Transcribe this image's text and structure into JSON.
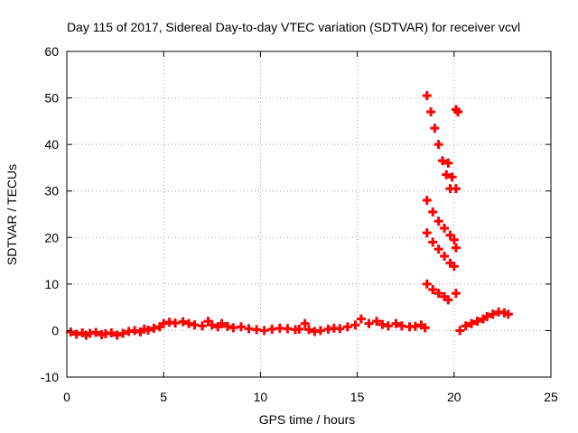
{
  "chart_data": {
    "type": "scatter",
    "title": "Day 115 of 2017, Sidereal Day-to-day VTEC variation (SDTVAR) for receiver vcvl",
    "xlabel": "GPS time / hours",
    "ylabel": "SDTVAR / TECUs",
    "xlim": [
      0,
      25
    ],
    "ylim": [
      -10,
      60
    ],
    "xticks": [
      0,
      5,
      10,
      15,
      20,
      25
    ],
    "yticks": [
      -10,
      0,
      10,
      20,
      30,
      40,
      50,
      60
    ],
    "grid": true,
    "legend": "none",
    "color": "#ff0000",
    "series": [
      {
        "points": [
          [
            0.2,
            -0.3
          ],
          [
            0.5,
            -0.8
          ],
          [
            0.8,
            -0.5
          ],
          [
            1.0,
            -1.0
          ],
          [
            1.2,
            -0.6
          ],
          [
            1.5,
            -0.4
          ],
          [
            1.8,
            -0.9
          ],
          [
            2.0,
            -0.7
          ],
          [
            2.3,
            -0.5
          ],
          [
            2.6,
            -1.0
          ],
          [
            2.9,
            -0.6
          ],
          [
            3.2,
            -0.2
          ],
          [
            3.5,
            0.0
          ],
          [
            3.8,
            -0.3
          ],
          [
            4.0,
            0.3
          ],
          [
            4.2,
            0.1
          ],
          [
            4.5,
            0.5
          ],
          [
            4.8,
            0.8
          ],
          [
            5.0,
            1.5
          ],
          [
            5.3,
            1.8
          ],
          [
            5.6,
            1.6
          ],
          [
            6.0,
            1.9
          ],
          [
            6.3,
            1.5
          ],
          [
            6.6,
            1.2
          ],
          [
            7.0,
            1.0
          ],
          [
            7.3,
            2.0
          ],
          [
            7.5,
            1.2
          ],
          [
            7.8,
            0.8
          ],
          [
            8.0,
            1.5
          ],
          [
            8.3,
            0.9
          ],
          [
            8.6,
            0.6
          ],
          [
            9.0,
            0.8
          ],
          [
            9.4,
            0.4
          ],
          [
            9.8,
            0.2
          ],
          [
            10.2,
            0.0
          ],
          [
            10.6,
            0.3
          ],
          [
            11.0,
            0.5
          ],
          [
            11.4,
            0.4
          ],
          [
            11.8,
            0.2
          ],
          [
            12.0,
            0.3
          ],
          [
            12.3,
            1.5
          ],
          [
            12.5,
            0.2
          ],
          [
            12.8,
            -0.2
          ],
          [
            13.1,
            0.0
          ],
          [
            13.5,
            0.3
          ],
          [
            13.8,
            0.5
          ],
          [
            14.1,
            0.4
          ],
          [
            14.5,
            0.8
          ],
          [
            14.9,
            1.2
          ],
          [
            15.2,
            2.5
          ],
          [
            15.6,
            1.5
          ],
          [
            16.0,
            2.0
          ],
          [
            16.3,
            1.3
          ],
          [
            16.6,
            1.0
          ],
          [
            17.0,
            1.5
          ],
          [
            17.3,
            1.0
          ],
          [
            17.7,
            0.8
          ],
          [
            18.0,
            0.9
          ],
          [
            18.3,
            1.2
          ],
          [
            18.5,
            0.6
          ],
          [
            18.6,
            50.5
          ],
          [
            18.8,
            47.0
          ],
          [
            19.0,
            43.5
          ],
          [
            19.2,
            40.0
          ],
          [
            19.4,
            36.5
          ],
          [
            19.6,
            33.5
          ],
          [
            19.8,
            30.5
          ],
          [
            19.7,
            36.0
          ],
          [
            19.9,
            33.0
          ],
          [
            20.1,
            30.5
          ],
          [
            18.6,
            28.0
          ],
          [
            18.9,
            25.5
          ],
          [
            19.2,
            23.5
          ],
          [
            19.5,
            22.0
          ],
          [
            19.8,
            20.5
          ],
          [
            20.0,
            19.5
          ],
          [
            18.6,
            21.0
          ],
          [
            18.9,
            19.0
          ],
          [
            19.2,
            17.5
          ],
          [
            19.5,
            16.0
          ],
          [
            19.8,
            14.5
          ],
          [
            20.0,
            13.8
          ],
          [
            18.6,
            10.0
          ],
          [
            18.9,
            8.8
          ],
          [
            19.2,
            8.0
          ],
          [
            19.5,
            7.3
          ],
          [
            19.7,
            6.6
          ],
          [
            20.1,
            47.5
          ],
          [
            20.2,
            47.0
          ],
          [
            20.1,
            17.8
          ],
          [
            20.1,
            8.0
          ],
          [
            20.3,
            0.0
          ],
          [
            20.6,
            1.0
          ],
          [
            20.9,
            1.5
          ],
          [
            21.2,
            2.0
          ],
          [
            21.5,
            2.5
          ],
          [
            21.7,
            3.0
          ],
          [
            22.0,
            3.5
          ],
          [
            22.3,
            4.0
          ],
          [
            22.6,
            3.8
          ],
          [
            22.8,
            3.5
          ]
        ]
      }
    ]
  }
}
